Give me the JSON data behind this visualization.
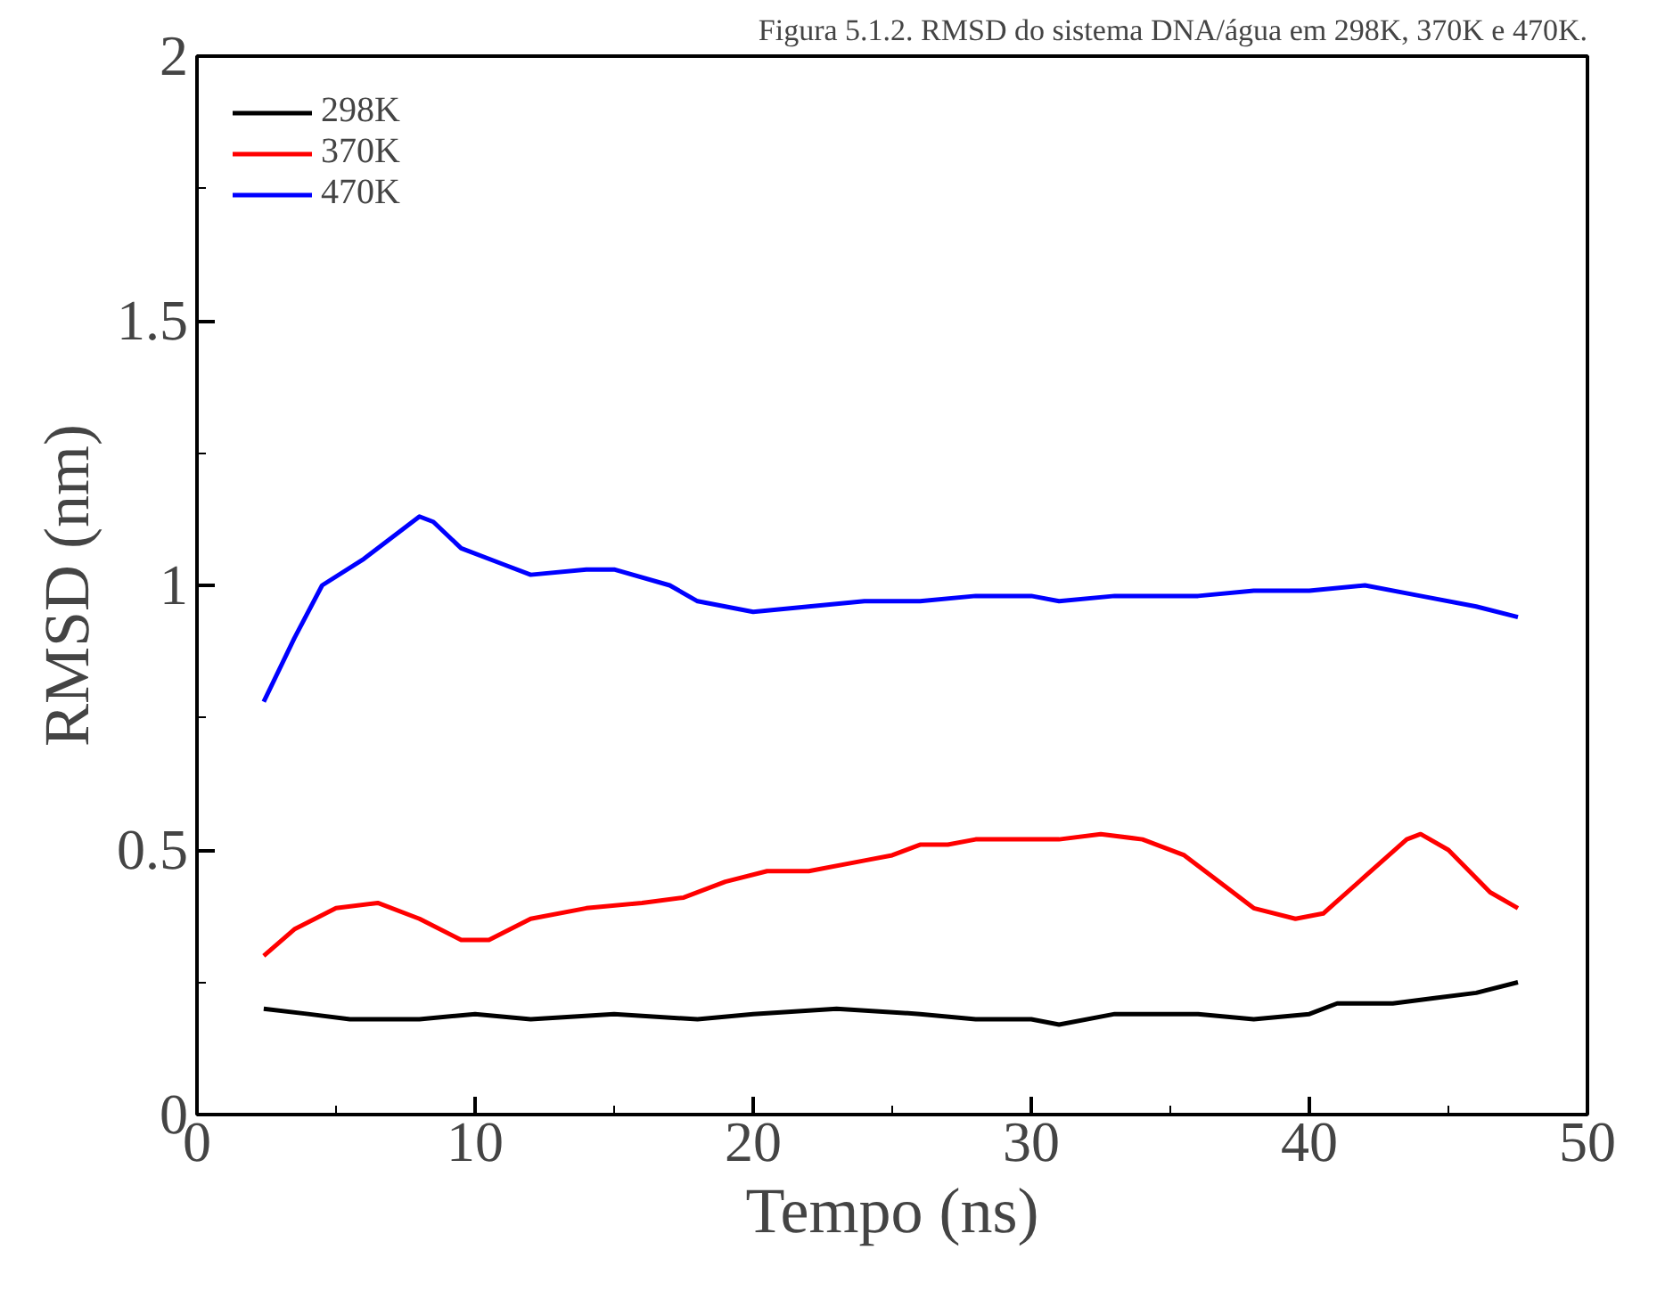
{
  "chart_data": {
    "type": "line",
    "title": "Figura 5.1.2. RMSD do sistema DNA/água em 298K, 370K e 470K.",
    "xlabel": "Tempo (ns)",
    "ylabel": "RMSD (nm)",
    "xlim": [
      0,
      50
    ],
    "ylim": [
      0,
      2
    ],
    "xticks": [
      0,
      10,
      20,
      30,
      40,
      50
    ],
    "yticks": [
      0,
      0.5,
      1,
      1.5,
      2
    ],
    "grid": false,
    "legend": "top left",
    "marker": "none",
    "line_style": "solid",
    "series": [
      {
        "name": "298K",
        "color": "#000000",
        "x": [
          2.4,
          4,
          5.5,
          8,
          10,
          12,
          15,
          18,
          20,
          23,
          26,
          28,
          30,
          31,
          33,
          36,
          38,
          40,
          41,
          43,
          44.5,
          46,
          47.5
        ],
        "values": [
          0.2,
          0.19,
          0.18,
          0.18,
          0.19,
          0.18,
          0.19,
          0.18,
          0.19,
          0.2,
          0.19,
          0.18,
          0.18,
          0.17,
          0.19,
          0.19,
          0.18,
          0.19,
          0.21,
          0.21,
          0.22,
          0.23,
          0.25
        ]
      },
      {
        "name": "370K",
        "color": "#ff0000",
        "x": [
          2.4,
          3.5,
          5,
          6.5,
          8,
          9.5,
          10.5,
          12,
          14,
          16,
          17.5,
          19,
          20.5,
          22,
          24,
          25,
          26,
          27,
          28,
          30,
          31,
          32.5,
          34,
          35.5,
          37,
          38,
          39.5,
          40.5,
          42,
          43.5,
          44,
          45,
          46.5,
          47.5
        ],
        "values": [
          0.3,
          0.35,
          0.39,
          0.4,
          0.37,
          0.33,
          0.33,
          0.37,
          0.39,
          0.4,
          0.41,
          0.44,
          0.46,
          0.46,
          0.48,
          0.49,
          0.51,
          0.51,
          0.52,
          0.52,
          0.52,
          0.53,
          0.52,
          0.49,
          0.43,
          0.39,
          0.37,
          0.38,
          0.45,
          0.52,
          0.53,
          0.5,
          0.42,
          0.39
        ]
      },
      {
        "name": "470K",
        "color": "#0000ff",
        "x": [
          2.4,
          3.5,
          4.5,
          6,
          7,
          8,
          8.5,
          9.5,
          11,
          12,
          14,
          15,
          17,
          18,
          20,
          22,
          24,
          26,
          28,
          30,
          31,
          33,
          36,
          38,
          40,
          42,
          44,
          46,
          47.5
        ],
        "values": [
          0.78,
          0.9,
          1.0,
          1.05,
          1.09,
          1.13,
          1.12,
          1.07,
          1.04,
          1.02,
          1.03,
          1.03,
          1.0,
          0.97,
          0.95,
          0.96,
          0.97,
          0.97,
          0.98,
          0.98,
          0.97,
          0.98,
          0.98,
          0.99,
          0.99,
          1.0,
          0.98,
          0.96,
          0.94
        ]
      }
    ]
  }
}
